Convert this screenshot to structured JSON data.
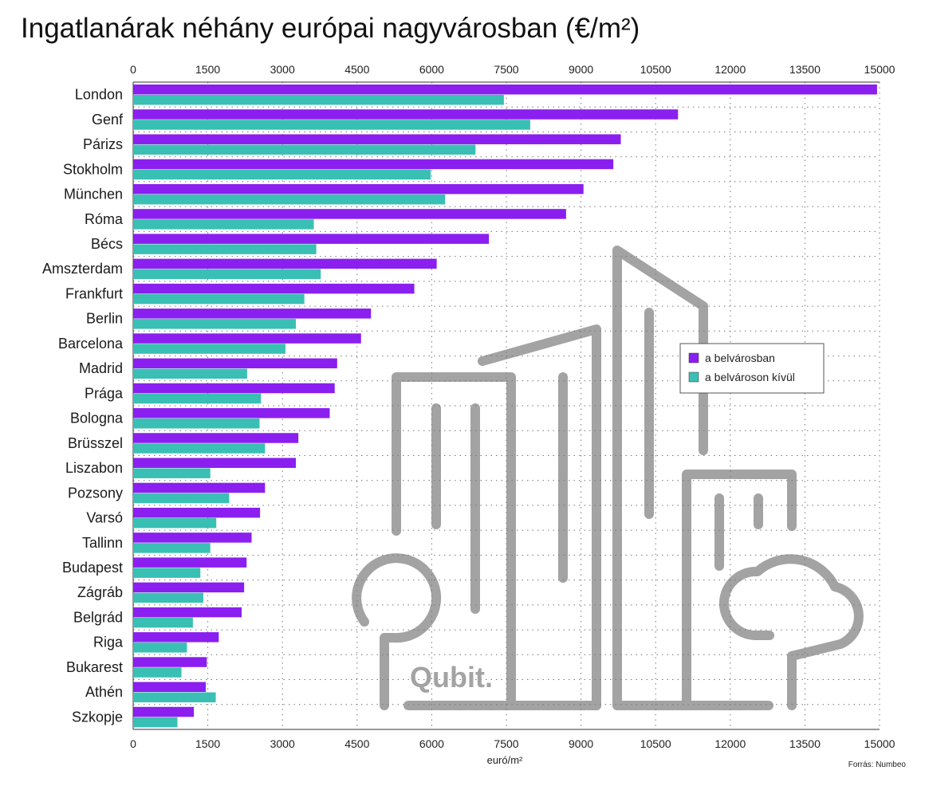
{
  "chart_data": {
    "type": "bar",
    "orientation": "horizontal",
    "title": "Ingatlanárak néhány európai nagyvárosban (€/m²)",
    "xlabel": "euró/m²",
    "source": "Forrás: Numbeo",
    "watermark": "Qubit.",
    "xlim": [
      0,
      15000
    ],
    "xticks": [
      0,
      1500,
      3000,
      4500,
      6000,
      7500,
      9000,
      10500,
      12000,
      13500,
      15000
    ],
    "grid": true,
    "legend_position": "right-middle",
    "categories": [
      "London",
      "Genf",
      "Párizs",
      "Stokholm",
      "München",
      "Róma",
      "Bécs",
      "Amszterdam",
      "Frankfurt",
      "Berlin",
      "Barcelona",
      "Madrid",
      "Prága",
      "Bologna",
      "Brüsszel",
      "Liszabon",
      "Pozsony",
      "Varsó",
      "Tallinn",
      "Budapest",
      "Zágráb",
      "Belgrád",
      "Riga",
      "Bukarest",
      "Athén",
      "Szkopje"
    ],
    "series": [
      {
        "name": "a belvárosban",
        "color": "#8a1ff0",
        "values": [
          14950,
          10950,
          9800,
          9650,
          9050,
          8700,
          7150,
          6100,
          5650,
          4780,
          4580,
          4100,
          4050,
          3950,
          3320,
          3270,
          2650,
          2550,
          2380,
          2280,
          2230,
          2180,
          1720,
          1480,
          1460,
          1220
        ]
      },
      {
        "name": "a belvároson kívül",
        "color": "#3abfb4",
        "values": [
          7450,
          7980,
          6880,
          5980,
          6270,
          3630,
          3680,
          3770,
          3440,
          3270,
          3060,
          2290,
          2570,
          2540,
          2650,
          1550,
          1930,
          1670,
          1550,
          1350,
          1410,
          1200,
          1080,
          970,
          1660,
          890
        ]
      }
    ]
  }
}
